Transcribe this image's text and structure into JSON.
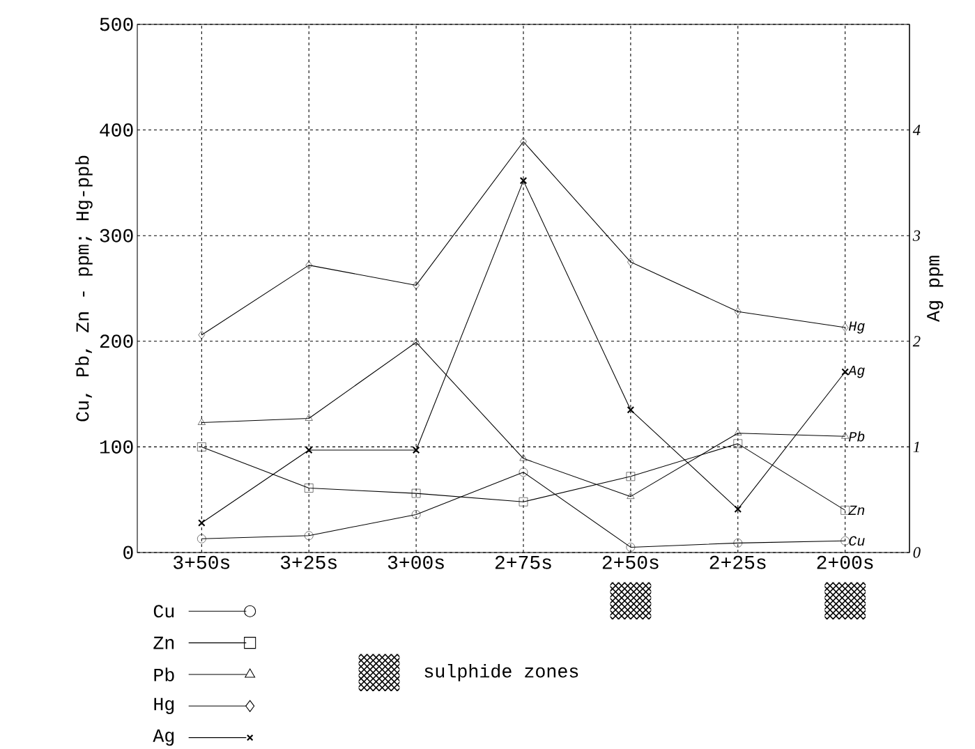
{
  "chart_data": {
    "type": "line",
    "categories": [
      "3+50s",
      "3+25s",
      "3+00s",
      "2+75s",
      "2+50s",
      "2+25s",
      "2+00s"
    ],
    "series": [
      {
        "name": "Cu",
        "color": "#000000",
        "marker": "circle",
        "values": [
          13,
          16,
          36,
          76,
          5,
          9,
          11
        ]
      },
      {
        "name": "Zn",
        "color": "#000000",
        "marker": "square",
        "values": [
          100,
          61,
          56,
          48,
          72,
          103,
          40
        ]
      },
      {
        "name": "Pb",
        "color": "#000000",
        "marker": "triangle",
        "values": [
          123,
          127,
          199,
          89,
          53,
          113,
          110
        ]
      },
      {
        "name": "Hg",
        "color": "#000000",
        "marker": "diamond",
        "values": [
          206,
          272,
          253,
          389,
          275,
          228,
          213
        ]
      },
      {
        "name": "Ag",
        "color": "#000000",
        "marker": "cross",
        "axis": "y2",
        "values": [
          0.28,
          0.97,
          0.97,
          3.52,
          1.35,
          0.41,
          1.71
        ]
      }
    ],
    "ylabel": "Cu, Pb, Zn - ppm; Hg-ppb",
    "y2label": "Ag ppm",
    "ylim": [
      0,
      500
    ],
    "yticks": [
      0,
      100,
      200,
      300,
      400,
      500
    ],
    "y2lim": [
      0,
      5
    ],
    "y2ticks": [
      0,
      1,
      2,
      3,
      4
    ],
    "grid": true,
    "legend": "bottom left",
    "annotations": [
      "sulphide zones"
    ]
  }
}
